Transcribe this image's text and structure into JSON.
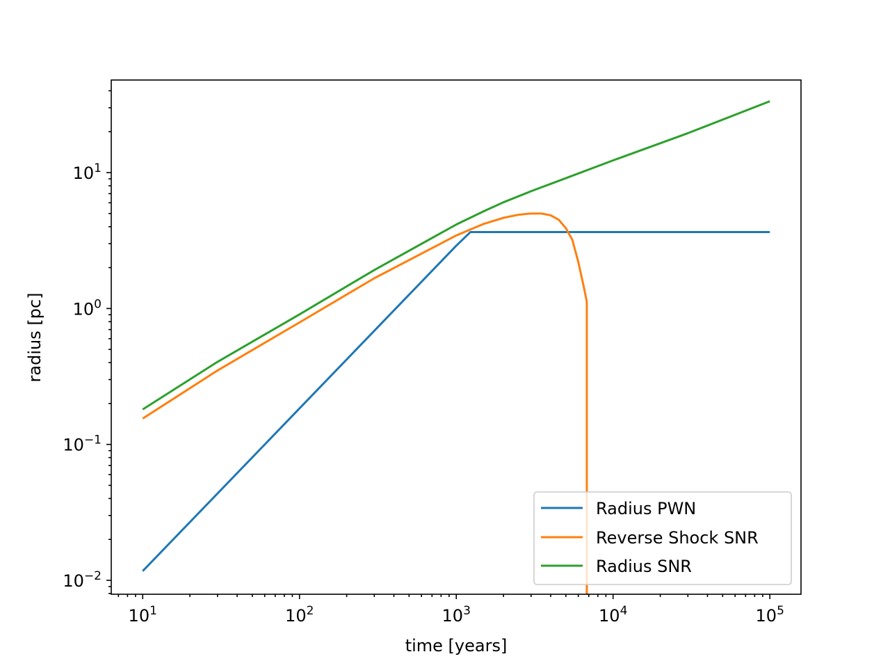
{
  "chart_data": {
    "type": "line",
    "title": "",
    "xlabel": "time [years]",
    "ylabel": "radius [pc]",
    "xscale": "log",
    "yscale": "log",
    "xlim": [
      6.3,
      158000
    ],
    "ylim": [
      0.0079,
      48
    ],
    "grid": false,
    "legend_position": "lower-right",
    "x_ticks": [
      {
        "value": 10,
        "base": "10",
        "exp": "1"
      },
      {
        "value": 100,
        "base": "10",
        "exp": "2"
      },
      {
        "value": 1000,
        "base": "10",
        "exp": "3"
      },
      {
        "value": 10000,
        "base": "10",
        "exp": "4"
      },
      {
        "value": 100000,
        "base": "10",
        "exp": "5"
      }
    ],
    "y_ticks": [
      {
        "value": 0.01,
        "base": "10",
        "exp": "−2"
      },
      {
        "value": 0.1,
        "base": "10",
        "exp": "−1"
      },
      {
        "value": 1,
        "base": "10",
        "exp": "0"
      },
      {
        "value": 10,
        "base": "10",
        "exp": "1"
      }
    ],
    "series": [
      {
        "name": "Radius PWN",
        "color": "#1f77b4",
        "x": [
          10,
          100,
          1000,
          1230,
          3000,
          10000,
          30000,
          100000
        ],
        "y": [
          0.0117,
          0.184,
          2.9,
          3.65,
          3.65,
          3.65,
          3.65,
          3.65
        ]
      },
      {
        "name": "Reverse Shock SNR",
        "color": "#ff7f0e",
        "x": [
          10,
          30,
          100,
          300,
          1000,
          1500,
          2000,
          2500,
          3000,
          3500,
          4000,
          4500,
          5000,
          5500,
          6000,
          6500,
          6800,
          6800
        ],
        "y": [
          0.155,
          0.35,
          0.79,
          1.67,
          3.45,
          4.2,
          4.65,
          4.9,
          5.0,
          5.0,
          4.85,
          4.5,
          3.9,
          3.2,
          2.2,
          1.45,
          1.12,
          0.0079
        ]
      },
      {
        "name": "Radius SNR",
        "color": "#2ca02c",
        "x": [
          10,
          30,
          100,
          300,
          1000,
          1500,
          2000,
          3000,
          5000,
          10000,
          30000,
          100000
        ],
        "y": [
          0.181,
          0.405,
          0.905,
          1.92,
          4.15,
          5.2,
          6.05,
          7.3,
          9.1,
          12.3,
          19.5,
          33.5
        ]
      }
    ]
  }
}
